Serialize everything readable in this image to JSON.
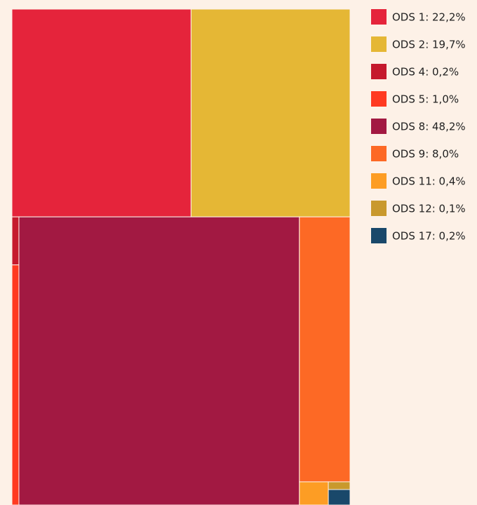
{
  "chart_data": {
    "type": "treemap",
    "categories": [
      "ODS 1: 22,2%",
      "ODS 2: 19,7%",
      "ODS 4: 0,2%",
      "ODS 5: 1,0%",
      "ODS 8: 48,2%",
      "ODS 9: 8,0%",
      "ODS 11: 0,4%",
      "ODS 12: 0,1%",
      "ODS 17: 0,2%"
    ],
    "values": [
      22.2,
      19.7,
      0.2,
      1.0,
      48.2,
      8.0,
      0.4,
      0.1,
      0.2
    ],
    "colors": [
      "#e5243b",
      "#e5b735",
      "#c5192d",
      "#ff3a21",
      "#a21942",
      "#fd6925",
      "#fd9d24",
      "#c9992d",
      "#19486a"
    ],
    "legend": "right"
  }
}
